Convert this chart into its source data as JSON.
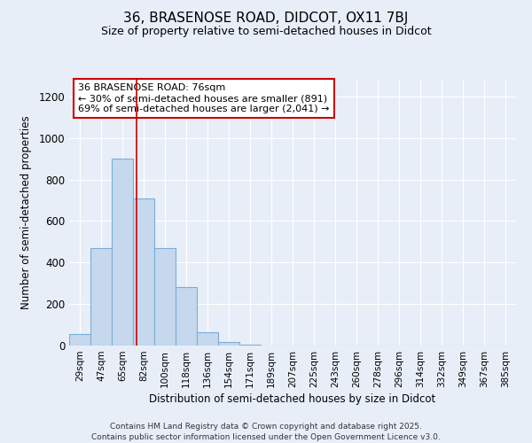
{
  "title1": "36, BRASENOSE ROAD, DIDCOT, OX11 7BJ",
  "title2": "Size of property relative to semi-detached houses in Didcot",
  "xlabel": "Distribution of semi-detached houses by size in Didcot",
  "ylabel": "Number of semi-detached properties",
  "categories": [
    "29sqm",
    "47sqm",
    "65sqm",
    "82sqm",
    "100sqm",
    "118sqm",
    "136sqm",
    "154sqm",
    "171sqm",
    "189sqm",
    "207sqm",
    "225sqm",
    "243sqm",
    "260sqm",
    "278sqm",
    "296sqm",
    "314sqm",
    "332sqm",
    "349sqm",
    "367sqm",
    "385sqm"
  ],
  "values": [
    55,
    470,
    900,
    710,
    470,
    280,
    65,
    15,
    5,
    2,
    0,
    0,
    0,
    0,
    0,
    0,
    0,
    0,
    0,
    0,
    0
  ],
  "bar_color": "#c5d8ed",
  "bar_edge_color": "#7aafd4",
  "bar_linewidth": 0.8,
  "annotation_box_text": "36 BRASENOSE ROAD: 76sqm\n← 30% of semi-detached houses are smaller (891)\n69% of semi-detached houses are larger (2,041) →",
  "annotation_box_color": "#ffffff",
  "annotation_box_edge_color": "#cc0000",
  "ylim": [
    0,
    1280
  ],
  "yticks": [
    0,
    200,
    400,
    600,
    800,
    1000,
    1200
  ],
  "background_color": "#e8eef8",
  "grid_color": "#ffffff",
  "footer_line1": "Contains HM Land Registry data © Crown copyright and database right 2025.",
  "footer_line2": "Contains public sector information licensed under the Open Government Licence v3.0."
}
